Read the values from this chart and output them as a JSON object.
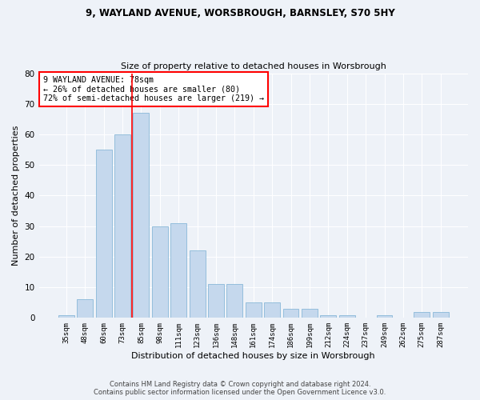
{
  "title1": "9, WAYLAND AVENUE, WORSBROUGH, BARNSLEY, S70 5HY",
  "title2": "Size of property relative to detached houses in Worsbrough",
  "xlabel": "Distribution of detached houses by size in Worsbrough",
  "ylabel": "Number of detached properties",
  "categories": [
    "35sqm",
    "48sqm",
    "60sqm",
    "73sqm",
    "85sqm",
    "98sqm",
    "111sqm",
    "123sqm",
    "136sqm",
    "148sqm",
    "161sqm",
    "174sqm",
    "186sqm",
    "199sqm",
    "212sqm",
    "224sqm",
    "237sqm",
    "249sqm",
    "262sqm",
    "275sqm",
    "287sqm"
  ],
  "values": [
    1,
    6,
    55,
    60,
    67,
    30,
    31,
    22,
    11,
    11,
    5,
    5,
    3,
    3,
    1,
    1,
    0,
    1,
    0,
    2,
    2
  ],
  "bar_color": "#c5d8ed",
  "bar_edgecolor": "#8ab8d8",
  "vline_color": "red",
  "vline_x": 3.5,
  "annotation_line1": "9 WAYLAND AVENUE: 78sqm",
  "annotation_line2": "← 26% of detached houses are smaller (80)",
  "annotation_line3": "72% of semi-detached houses are larger (219) →",
  "annotation_box_color": "white",
  "annotation_box_edgecolor": "red",
  "ylim": [
    0,
    80
  ],
  "yticks": [
    0,
    10,
    20,
    30,
    40,
    50,
    60,
    70,
    80
  ],
  "footer1": "Contains HM Land Registry data © Crown copyright and database right 2024.",
  "footer2": "Contains public sector information licensed under the Open Government Licence v3.0.",
  "bg_color": "#eef2f8",
  "plot_bg_color": "#eef2f8"
}
